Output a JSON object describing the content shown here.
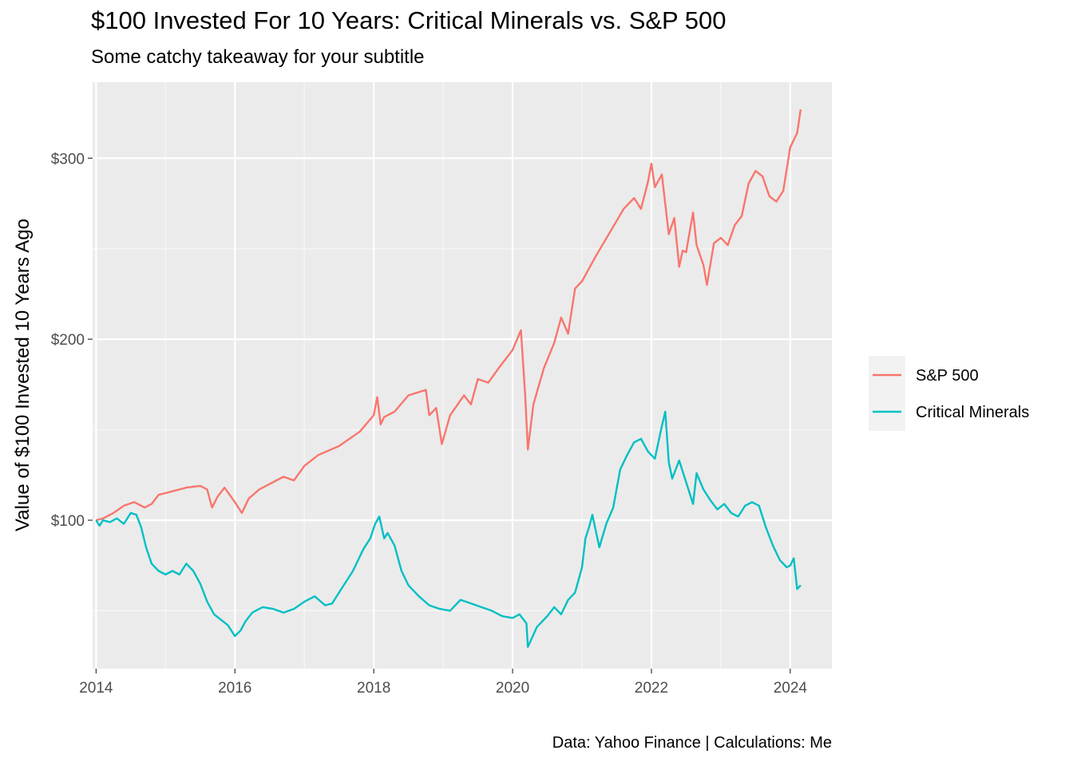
{
  "chart_data": {
    "type": "line",
    "title": "$100 Invested For 10 Years: Critical Minerals vs. S&P 500",
    "subtitle": "Some catchy takeaway for your subtitle",
    "caption": "Data: Yahoo Finance | Calculations: Me",
    "xlabel": "",
    "ylabel": "Value of $100 Invested 10 Years Ago",
    "xlim": [
      2013.95,
      2024.6
    ],
    "ylim": [
      18,
      342
    ],
    "x_ticks": [
      2014,
      2016,
      2018,
      2020,
      2022,
      2024
    ],
    "x_tick_labels": [
      "2014",
      "2016",
      "2018",
      "2020",
      "2022",
      "2024"
    ],
    "y_ticks": [
      100,
      200,
      300
    ],
    "y_tick_labels": [
      "$100",
      "$200",
      "$300"
    ],
    "grid": true,
    "legend_position": "right",
    "series": [
      {
        "name": "S&P 500",
        "color": "#F8766D",
        "x": [
          2014.0,
          2014.1,
          2014.25,
          2014.4,
          2014.55,
          2014.7,
          2014.8,
          2014.9,
          2015.0,
          2015.1,
          2015.3,
          2015.5,
          2015.6,
          2015.67,
          2015.75,
          2015.85,
          2016.0,
          2016.1,
          2016.2,
          2016.35,
          2016.5,
          2016.7,
          2016.85,
          2017.0,
          2017.2,
          2017.5,
          2017.8,
          2018.0,
          2018.05,
          2018.1,
          2018.15,
          2018.3,
          2018.5,
          2018.75,
          2018.8,
          2018.9,
          2018.98,
          2019.1,
          2019.3,
          2019.4,
          2019.5,
          2019.65,
          2019.8,
          2020.0,
          2020.12,
          2020.18,
          2020.22,
          2020.3,
          2020.45,
          2020.6,
          2020.7,
          2020.8,
          2020.9,
          2021.0,
          2021.2,
          2021.4,
          2021.6,
          2021.75,
          2021.85,
          2021.95,
          2022.0,
          2022.05,
          2022.15,
          2022.25,
          2022.33,
          2022.4,
          2022.45,
          2022.5,
          2022.6,
          2022.65,
          2022.75,
          2022.8,
          2022.9,
          2023.0,
          2023.1,
          2023.2,
          2023.3,
          2023.4,
          2023.5,
          2023.6,
          2023.7,
          2023.8,
          2023.9,
          2024.0,
          2024.1,
          2024.15
        ],
        "values": [
          100,
          101,
          104,
          108,
          110,
          107,
          109,
          114,
          115,
          116,
          118,
          119,
          117,
          107,
          113,
          118,
          110,
          104,
          112,
          117,
          120,
          124,
          122,
          130,
          136,
          141,
          149,
          158,
          168,
          153,
          157,
          160,
          169,
          172,
          158,
          162,
          142,
          158,
          169,
          164,
          178,
          176,
          184,
          194,
          205,
          170,
          139,
          164,
          184,
          198,
          212,
          203,
          228,
          232,
          246,
          259,
          272,
          278,
          272,
          287,
          297,
          284,
          291,
          258,
          267,
          240,
          249,
          248,
          270,
          252,
          241,
          230,
          253,
          256,
          252,
          263,
          268,
          286,
          293,
          290,
          279,
          276,
          282,
          306,
          314,
          327
        ]
      },
      {
        "name": "Critical Minerals",
        "color": "#00BFC4",
        "x": [
          2014.0,
          2014.05,
          2014.1,
          2014.2,
          2014.3,
          2014.4,
          2014.5,
          2014.58,
          2014.65,
          2014.72,
          2014.8,
          2014.9,
          2015.0,
          2015.1,
          2015.2,
          2015.3,
          2015.4,
          2015.5,
          2015.6,
          2015.7,
          2015.8,
          2015.9,
          2016.0,
          2016.08,
          2016.15,
          2016.25,
          2016.4,
          2016.55,
          2016.7,
          2016.85,
          2017.0,
          2017.15,
          2017.3,
          2017.4,
          2017.55,
          2017.7,
          2017.85,
          2017.95,
          2018.02,
          2018.08,
          2018.15,
          2018.2,
          2018.3,
          2018.4,
          2018.5,
          2018.65,
          2018.8,
          2018.95,
          2019.1,
          2019.25,
          2019.4,
          2019.55,
          2019.7,
          2019.85,
          2020.0,
          2020.1,
          2020.2,
          2020.22,
          2020.35,
          2020.5,
          2020.6,
          2020.7,
          2020.8,
          2020.9,
          2021.0,
          2021.05,
          2021.1,
          2021.15,
          2021.25,
          2021.35,
          2021.45,
          2021.55,
          2021.65,
          2021.75,
          2021.85,
          2021.95,
          2022.05,
          2022.15,
          2022.2,
          2022.25,
          2022.3,
          2022.4,
          2022.5,
          2022.6,
          2022.65,
          2022.75,
          2022.85,
          2022.95,
          2023.05,
          2023.15,
          2023.25,
          2023.35,
          2023.45,
          2023.55,
          2023.65,
          2023.75,
          2023.85,
          2023.95,
          2024.0,
          2024.05,
          2024.1,
          2024.15
        ],
        "values": [
          100,
          97,
          100,
          99,
          101,
          98,
          104,
          103,
          96,
          85,
          76,
          72,
          70,
          72,
          70,
          76,
          72,
          65,
          55,
          48,
          45,
          42,
          36,
          39,
          44,
          49,
          52,
          51,
          49,
          51,
          55,
          58,
          53,
          54,
          63,
          72,
          84,
          90,
          98,
          102,
          90,
          93,
          86,
          72,
          64,
          58,
          53,
          51,
          50,
          56,
          54,
          52,
          50,
          47,
          46,
          48,
          43,
          30,
          41,
          47,
          52,
          48,
          56,
          60,
          74,
          90,
          96,
          103,
          85,
          98,
          107,
          128,
          136,
          143,
          145,
          138,
          134,
          152,
          160,
          132,
          123,
          133,
          121,
          109,
          126,
          117,
          111,
          106,
          109,
          104,
          102,
          108,
          110,
          108,
          96,
          86,
          78,
          74,
          75,
          79,
          62,
          64
        ]
      }
    ]
  }
}
